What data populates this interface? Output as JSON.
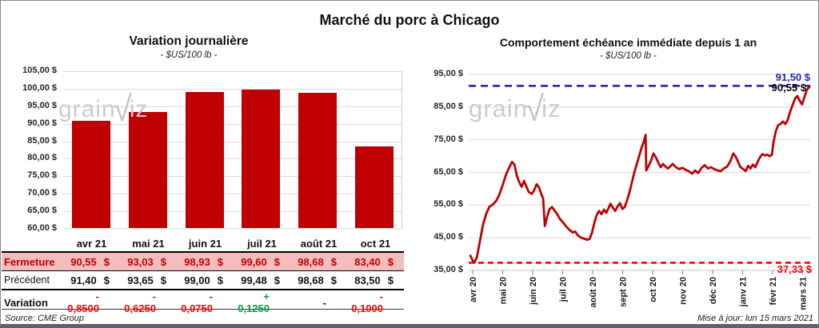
{
  "header": {
    "title": "Marché du porc à Chicago"
  },
  "watermark": {
    "prefix": "grain",
    "mark": "√",
    "suffix": "iz"
  },
  "chart_data": [
    {
      "type": "bar",
      "title": "Variation  journalière",
      "subtitle": "- $US/100 lb -",
      "categories": [
        "avr 21",
        "mai 21",
        "juin 21",
        "juil 21",
        "août 21",
        "oct 21"
      ],
      "values": [
        90.55,
        93.03,
        98.93,
        99.6,
        98.68,
        83.4
      ],
      "ylim": [
        60,
        105
      ],
      "ytick_step": 5,
      "y_tick_labels": [
        "105,00 $",
        "100,00 $",
        "95,00 $",
        "90,00 $",
        "85,00 $",
        "80,00 $",
        "75,00 $",
        "70,00 $",
        "65,00 $",
        "60,00 $"
      ],
      "grid": true,
      "legend": "none",
      "bar_color": "#C00000"
    },
    {
      "type": "line",
      "title": "Comportement  échéance immédiate depuis 1 an",
      "subtitle": "- $US/100 lb -",
      "xlabel": "",
      "ylabel": "",
      "x_tick_labels": [
        "avr 20",
        "mai 20",
        "juin 20",
        "juil 20",
        "août 20",
        "sept 20",
        "oct 20",
        "nov 20",
        "déc 20",
        "janv 21",
        "févr 21",
        "mars 21"
      ],
      "ylim": [
        35,
        95
      ],
      "ytick_step": 10,
      "y_tick_labels": [
        "95,00 $",
        "85,00 $",
        "75,00 $",
        "65,00 $",
        "55,00 $",
        "45,00 $",
        "35,00 $"
      ],
      "grid": true,
      "legend": "none",
      "line_color": "#C00000",
      "annotations": {
        "high_line": {
          "value": 91.5,
          "label": "91,50 $",
          "color": "#2323C4",
          "style": "dashed"
        },
        "last_close": {
          "value": 90.55,
          "label": "90,55 $",
          "color": "#000000"
        },
        "low_line": {
          "value": 37.33,
          "label": "37,33 $",
          "color": "#FF0000",
          "style": "dashed"
        }
      },
      "points": [
        [
          0.005,
          39.5
        ],
        [
          0.012,
          38.0
        ],
        [
          0.017,
          37.4
        ],
        [
          0.024,
          39.0
        ],
        [
          0.033,
          44.0
        ],
        [
          0.042,
          49.0
        ],
        [
          0.052,
          52.5
        ],
        [
          0.061,
          54.5
        ],
        [
          0.071,
          55.2
        ],
        [
          0.08,
          56.2
        ],
        [
          0.089,
          58.0
        ],
        [
          0.099,
          61.0
        ],
        [
          0.11,
          64.5
        ],
        [
          0.12,
          66.8
        ],
        [
          0.127,
          68.2
        ],
        [
          0.134,
          67.4
        ],
        [
          0.141,
          64.0
        ],
        [
          0.148,
          62.0
        ],
        [
          0.155,
          60.6
        ],
        [
          0.162,
          62.4
        ],
        [
          0.169,
          60.6
        ],
        [
          0.176,
          59.0
        ],
        [
          0.185,
          58.4
        ],
        [
          0.192,
          59.6
        ],
        [
          0.199,
          61.4
        ],
        [
          0.206,
          60.4
        ],
        [
          0.213,
          58.2
        ],
        [
          0.218,
          57.0
        ],
        [
          0.223,
          48.6
        ],
        [
          0.23,
          51.5
        ],
        [
          0.237,
          53.8
        ],
        [
          0.244,
          54.4
        ],
        [
          0.251,
          53.4
        ],
        [
          0.258,
          52.4
        ],
        [
          0.267,
          50.8
        ],
        [
          0.277,
          49.6
        ],
        [
          0.286,
          48.4
        ],
        [
          0.295,
          47.4
        ],
        [
          0.305,
          46.6
        ],
        [
          0.312,
          46.9
        ],
        [
          0.319,
          45.8
        ],
        [
          0.328,
          45.1
        ],
        [
          0.338,
          44.7
        ],
        [
          0.347,
          44.4
        ],
        [
          0.354,
          44.6
        ],
        [
          0.361,
          46.5
        ],
        [
          0.368,
          49.5
        ],
        [
          0.375,
          52.0
        ],
        [
          0.382,
          53.2
        ],
        [
          0.389,
          52.2
        ],
        [
          0.396,
          53.6
        ],
        [
          0.403,
          52.6
        ],
        [
          0.41,
          54.2
        ],
        [
          0.415,
          55.4
        ],
        [
          0.422,
          54.2
        ],
        [
          0.429,
          53.2
        ],
        [
          0.436,
          54.6
        ],
        [
          0.443,
          55.6
        ],
        [
          0.45,
          53.8
        ],
        [
          0.457,
          54.4
        ],
        [
          0.464,
          56.5
        ],
        [
          0.471,
          59.0
        ],
        [
          0.478,
          62.0
        ],
        [
          0.485,
          65.0
        ],
        [
          0.492,
          67.5
        ],
        [
          0.499,
          70.0
        ],
        [
          0.506,
          72.5
        ],
        [
          0.513,
          74.5
        ],
        [
          0.518,
          76.5
        ],
        [
          0.52,
          65.6
        ],
        [
          0.527,
          67.0
        ],
        [
          0.534,
          68.6
        ],
        [
          0.541,
          70.8
        ],
        [
          0.548,
          69.6
        ],
        [
          0.555,
          68.0
        ],
        [
          0.562,
          66.6
        ],
        [
          0.569,
          67.6
        ],
        [
          0.576,
          66.8
        ],
        [
          0.583,
          66.2
        ],
        [
          0.59,
          66.8
        ],
        [
          0.597,
          67.6
        ],
        [
          0.607,
          66.6
        ],
        [
          0.616,
          66.0
        ],
        [
          0.626,
          66.4
        ],
        [
          0.635,
          65.8
        ],
        [
          0.644,
          65.4
        ],
        [
          0.654,
          64.6
        ],
        [
          0.663,
          65.6
        ],
        [
          0.672,
          64.8
        ],
        [
          0.682,
          66.4
        ],
        [
          0.691,
          67.2
        ],
        [
          0.701,
          66.2
        ],
        [
          0.71,
          66.6
        ],
        [
          0.719,
          66.0
        ],
        [
          0.729,
          65.6
        ],
        [
          0.738,
          65.4
        ],
        [
          0.747,
          66.2
        ],
        [
          0.757,
          66.8
        ],
        [
          0.766,
          68.4
        ],
        [
          0.775,
          70.8
        ],
        [
          0.782,
          69.8
        ],
        [
          0.789,
          68.2
        ],
        [
          0.796,
          66.6
        ],
        [
          0.804,
          66.0
        ],
        [
          0.811,
          65.4
        ],
        [
          0.818,
          67.0
        ],
        [
          0.825,
          66.2
        ],
        [
          0.832,
          67.4
        ],
        [
          0.839,
          66.6
        ],
        [
          0.846,
          68.2
        ],
        [
          0.853,
          69.6
        ],
        [
          0.86,
          70.6
        ],
        [
          0.867,
          70.2
        ],
        [
          0.874,
          70.4
        ],
        [
          0.881,
          70.0
        ],
        [
          0.888,
          70.4
        ],
        [
          0.892,
          74.0
        ],
        [
          0.899,
          77.5
        ],
        [
          0.906,
          79.5
        ],
        [
          0.913,
          79.8
        ],
        [
          0.92,
          80.6
        ],
        [
          0.927,
          79.8
        ],
        [
          0.934,
          81.0
        ],
        [
          0.941,
          83.5
        ],
        [
          0.948,
          85.5
        ],
        [
          0.955,
          87.5
        ],
        [
          0.962,
          88.4
        ],
        [
          0.969,
          87.0
        ],
        [
          0.976,
          85.8
        ],
        [
          0.983,
          88.0
        ],
        [
          0.99,
          90.2
        ],
        [
          0.998,
          91.3
        ]
      ]
    }
  ],
  "table": {
    "columns": [
      "avr 21",
      "mai 21",
      "juin 21",
      "juil 21",
      "août 21",
      "oct 21"
    ],
    "rows": {
      "fermeture": {
        "label": "Fermeture",
        "values": [
          "90,55",
          "93,03",
          "98,93",
          "99,60",
          "98,68",
          "83,40"
        ],
        "unit": "$"
      },
      "precedent": {
        "label": "Précédent",
        "values": [
          "91,40",
          "93,65",
          "99,00",
          "99,48",
          "98,68",
          "83,50"
        ],
        "unit": "$"
      },
      "variation": {
        "label": "Variation",
        "cells": [
          {
            "text": "- 0,8500",
            "tone": "neg"
          },
          {
            "text": "- 0,6250",
            "tone": "neg"
          },
          {
            "text": "- 0,0750",
            "tone": "neg"
          },
          {
            "text": "+ 0,1250",
            "tone": "pos"
          },
          {
            "text": "-",
            "tone": "flat"
          },
          {
            "text": "- 0,1000",
            "tone": "neg"
          }
        ]
      }
    }
  },
  "footer": {
    "source": "Source: CME Group",
    "updated": "Mise à jour: lun 15 mars 2021"
  },
  "colors": {
    "bar": "#C00000",
    "line": "#C00000",
    "neg": "#FF0000",
    "pos": "#00A046",
    "flat": "#111111",
    "fermeture_bg": "#F3BDBD",
    "fermeture_text": "#C00000",
    "grid": "#D9D9D9",
    "ref_high": "#2323C4",
    "ref_low": "#FF0000",
    "watermark": "#C9CDD2"
  }
}
